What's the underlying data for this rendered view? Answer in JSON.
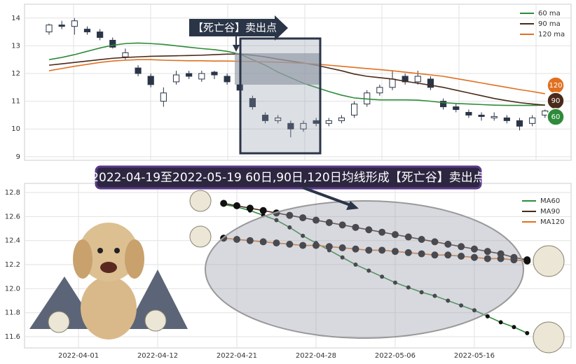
{
  "chart_data": [
    {
      "type": "candlestick",
      "ylim": [
        8.87,
        14.5
      ],
      "yticks": [
        9,
        10,
        11,
        12,
        13,
        14
      ],
      "xlim": [
        -1.93,
        41.05
      ],
      "grid": true,
      "ohlc": [
        [
          13.5,
          13.8,
          13.4,
          13.75
        ],
        [
          13.75,
          13.9,
          13.6,
          13.7
        ],
        [
          13.7,
          14.0,
          13.4,
          13.9
        ],
        [
          13.6,
          13.7,
          13.4,
          13.5
        ],
        [
          13.5,
          13.6,
          13.2,
          13.3
        ],
        [
          13.2,
          13.3,
          12.9,
          12.95
        ],
        [
          12.6,
          12.9,
          12.5,
          12.75
        ],
        [
          12.2,
          12.3,
          11.9,
          12.0
        ],
        [
          11.9,
          12.0,
          11.5,
          11.6
        ],
        [
          11.0,
          11.5,
          10.8,
          11.3
        ],
        [
          11.7,
          12.1,
          11.6,
          11.95
        ],
        [
          12.0,
          12.1,
          11.8,
          11.9
        ],
        [
          11.8,
          12.1,
          11.7,
          12.0
        ],
        [
          12.05,
          12.1,
          11.8,
          11.95
        ],
        [
          11.9,
          12.0,
          11.6,
          11.7
        ],
        [
          11.6,
          11.7,
          11.3,
          11.4
        ],
        [
          11.1,
          11.2,
          10.7,
          10.8
        ],
        [
          10.5,
          10.6,
          10.2,
          10.3
        ],
        [
          10.3,
          10.5,
          10.2,
          10.4
        ],
        [
          10.2,
          10.3,
          9.7,
          10.0
        ],
        [
          10.0,
          10.3,
          9.9,
          10.2
        ],
        [
          10.3,
          10.4,
          10.1,
          10.2
        ],
        [
          10.2,
          10.4,
          10.1,
          10.3
        ],
        [
          10.3,
          10.5,
          10.2,
          10.4
        ],
        [
          10.5,
          11.0,
          10.4,
          10.9
        ],
        [
          10.9,
          11.4,
          10.8,
          11.3
        ],
        [
          11.3,
          11.6,
          11.2,
          11.5
        ],
        [
          11.5,
          12.1,
          11.4,
          11.8
        ],
        [
          11.9,
          12.0,
          11.6,
          11.7
        ],
        [
          11.7,
          12.1,
          11.6,
          11.9
        ],
        [
          11.8,
          11.9,
          11.4,
          11.5
        ],
        [
          11.0,
          11.1,
          10.7,
          10.8
        ],
        [
          10.8,
          10.9,
          10.6,
          10.7
        ],
        [
          10.6,
          10.7,
          10.4,
          10.5
        ],
        [
          10.5,
          10.6,
          10.3,
          10.45
        ],
        [
          10.4,
          10.6,
          10.3,
          10.45
        ],
        [
          10.4,
          10.5,
          10.2,
          10.3
        ],
        [
          10.3,
          10.4,
          9.95,
          10.1
        ],
        [
          10.2,
          10.5,
          10.1,
          10.4
        ],
        [
          10.5,
          10.7,
          10.4,
          10.65
        ]
      ],
      "series": [
        {
          "name": "60 ma",
          "color": "#2e8b3a",
          "values": [
            12.5,
            12.58,
            12.68,
            12.8,
            12.92,
            13.02,
            13.08,
            13.1,
            13.08,
            13.05,
            13.0,
            12.95,
            12.9,
            12.86,
            12.8,
            12.7,
            12.5,
            12.3,
            12.05,
            11.85,
            11.65,
            11.5,
            11.35,
            11.22,
            11.12,
            11.08,
            11.05,
            11.05,
            11.05,
            11.04,
            11.0,
            10.95,
            10.92,
            10.9,
            10.88,
            10.86,
            10.85,
            10.85,
            10.85,
            10.86
          ]
        },
        {
          "name": "90 ma",
          "color": "#4a2a1a",
          "values": [
            12.3,
            12.35,
            12.4,
            12.45,
            12.5,
            12.55,
            12.58,
            12.6,
            12.62,
            12.63,
            12.64,
            12.65,
            12.66,
            12.68,
            12.7,
            12.7,
            12.66,
            12.6,
            12.52,
            12.45,
            12.38,
            12.3,
            12.2,
            12.1,
            11.98,
            11.9,
            11.85,
            11.8,
            11.72,
            11.65,
            11.58,
            11.5,
            11.4,
            11.3,
            11.2,
            11.1,
            11.02,
            10.95,
            10.9,
            10.86
          ]
        },
        {
          "name": "120 ma",
          "color": "#e07020",
          "values": [
            12.1,
            12.18,
            12.26,
            12.33,
            12.4,
            12.45,
            12.48,
            12.5,
            12.5,
            12.48,
            12.47,
            12.46,
            12.46,
            12.45,
            12.45,
            12.44,
            12.43,
            12.42,
            12.41,
            12.39,
            12.37,
            12.34,
            12.3,
            12.26,
            12.22,
            12.18,
            12.14,
            12.1,
            12.05,
            12.0,
            11.95,
            11.9,
            11.82,
            11.74,
            11.66,
            11.58,
            11.5,
            11.42,
            11.35,
            11.27
          ]
        }
      ],
      "annotation": "【死亡谷】卖出点",
      "end_labels": [
        "120",
        "90",
        "60"
      ]
    },
    {
      "type": "line",
      "annotation": "2022-04-19至2022-05-19 60日,90日,120日均线形成【死亡谷】卖出点",
      "x": [
        11,
        12,
        13,
        14,
        15,
        16,
        17,
        18,
        19,
        20,
        21,
        22,
        23,
        24,
        25,
        26,
        27,
        28,
        29,
        30,
        31,
        32,
        33,
        34
      ],
      "xlim": [
        -4.09,
        37.33
      ],
      "ylim": [
        11.507,
        12.876
      ],
      "grid": true,
      "xticks": [
        {
          "value": 0,
          "label": "2022-04-01"
        },
        {
          "value": 6,
          "label": "2022-04-12"
        },
        {
          "value": 12,
          "label": "2022-04-21"
        },
        {
          "value": 18,
          "label": "2022-04-28"
        },
        {
          "value": 24,
          "label": "2022-05-06"
        },
        {
          "value": 30,
          "label": "2022-05-16"
        }
      ],
      "yticks": [
        11.6,
        11.8,
        {
          "value": 12,
          "label": "12.0"
        },
        12.2,
        12.4,
        12.6,
        12.8
      ],
      "series": [
        {
          "name": "MA60",
          "color": "#2e8b3a",
          "values": [
            12.7,
            12.68,
            12.65,
            12.61,
            12.57,
            12.51,
            12.44,
            12.38,
            12.32,
            12.26,
            12.2,
            12.15,
            12.1,
            12.05,
            12.01,
            11.97,
            11.94,
            11.9,
            11.86,
            11.82,
            11.77,
            11.72,
            11.68,
            11.63
          ]
        },
        {
          "name": "MA90",
          "color": "#4a2a1a",
          "values": [
            12.71,
            12.69,
            12.67,
            12.65,
            12.63,
            12.61,
            12.59,
            12.57,
            12.55,
            12.53,
            12.51,
            12.49,
            12.47,
            12.45,
            12.43,
            12.41,
            12.39,
            12.37,
            12.35,
            12.33,
            12.31,
            12.29,
            12.26,
            12.24
          ]
        },
        {
          "name": "MA120",
          "color": "#e07020",
          "values": [
            12.42,
            12.41,
            12.4,
            12.39,
            12.38,
            12.37,
            12.36,
            12.36,
            12.35,
            12.34,
            12.33,
            12.32,
            12.32,
            12.31,
            12.3,
            12.29,
            12.28,
            12.28,
            12.27,
            12.26,
            12.25,
            12.25,
            12.24,
            12.23
          ]
        }
      ]
    }
  ]
}
